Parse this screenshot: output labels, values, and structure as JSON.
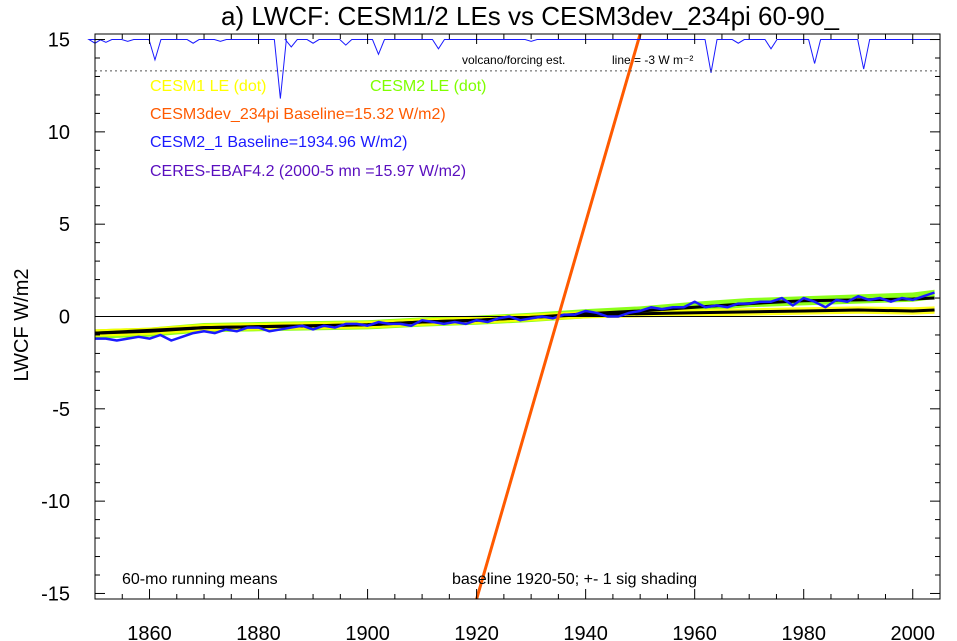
{
  "chart_data": {
    "type": "line",
    "title": "a) LWCF: CESM1/2 LEs vs CESM3dev_234pi 60-90_",
    "xlabel": "",
    "ylabel": "LWCF W/m2",
    "xlim": [
      1850,
      2005
    ],
    "ylim": [
      -15.3,
      15.3
    ],
    "x_ticks": [
      "1860",
      "1880",
      "1900",
      "1920",
      "1940",
      "1960",
      "1980",
      "2000"
    ],
    "y_ticks": [
      "15",
      "10",
      "5",
      "0",
      "-5",
      "-10",
      "-15"
    ],
    "legend": [
      {
        "text": "CESM1 LE (dot)",
        "color": "#ffff00"
      },
      {
        "text": "CESM2 LE (dot)",
        "color": "#7fff00"
      },
      {
        "text": "CESM3dev_234pi Baseline=15.32 W/m2)",
        "color": "#ff5a00"
      },
      {
        "text": "CESM2_1 Baseline=1934.96 W/m2)",
        "color": "#1a1aff"
      },
      {
        "text": "CERES-EBAF4.2 (2000-5 mn =15.97 W/m2)",
        "color": "#5a0fbf"
      }
    ],
    "volcano_label": "volcano/forcing est.",
    "volcano_line_label": "line = -3 W m⁻²",
    "note_left": "60-mo running means",
    "note_right": "baseline 1920-50; +- 1 sig shading",
    "volcano_reference_level": 13.3,
    "volcano_dips": [
      {
        "x": 1850,
        "y": 14.8
      },
      {
        "x": 1852,
        "y": 14.85
      },
      {
        "x": 1856,
        "y": 14.9
      },
      {
        "x": 1861,
        "y": 13.9
      },
      {
        "x": 1868,
        "y": 14.8
      },
      {
        "x": 1873,
        "y": 14.9
      },
      {
        "x": 1884,
        "y": 11.8
      },
      {
        "x": 1886,
        "y": 14.6
      },
      {
        "x": 1890,
        "y": 14.8
      },
      {
        "x": 1896,
        "y": 14.7
      },
      {
        "x": 1902,
        "y": 14.2
      },
      {
        "x": 1913,
        "y": 14.5
      },
      {
        "x": 1930,
        "y": 14.9
      },
      {
        "x": 1963,
        "y": 13.2
      },
      {
        "x": 1968,
        "y": 14.8
      },
      {
        "x": 1974,
        "y": 14.5
      },
      {
        "x": 1982,
        "y": 13.7
      },
      {
        "x": 1991,
        "y": 13.4
      }
    ],
    "series": [
      {
        "name": "CESM2 LE (dot)",
        "color": "#7fff00",
        "x": [
          1850,
          1860,
          1870,
          1880,
          1890,
          1900,
          1910,
          1920,
          1930,
          1940,
          1950,
          1960,
          1970,
          1980,
          1990,
          2000,
          2004
        ],
        "y": [
          -0.95,
          -0.85,
          -0.6,
          -0.55,
          -0.5,
          -0.45,
          -0.3,
          -0.2,
          -0.05,
          0.15,
          0.3,
          0.55,
          0.75,
          0.85,
          0.95,
          1.05,
          1.2
        ],
        "spread": 0.25
      },
      {
        "name": "CESM1 LE (dot)",
        "color": "#ffff00",
        "x": [
          1850,
          1860,
          1870,
          1880,
          1890,
          1900,
          1910,
          1920,
          1930,
          1940,
          1950,
          1960,
          1970,
          1980,
          1990,
          2000,
          2004
        ],
        "y": [
          -0.9,
          -0.8,
          -0.6,
          -0.55,
          -0.5,
          -0.45,
          -0.3,
          -0.2,
          -0.05,
          0.1,
          0.15,
          0.2,
          0.25,
          0.3,
          0.35,
          0.3,
          0.35
        ],
        "spread": 0.2
      },
      {
        "name": "CESM1 LE mean",
        "color": "#000000",
        "x": [
          1850,
          1860,
          1870,
          1880,
          1890,
          1900,
          1910,
          1920,
          1930,
          1940,
          1950,
          1960,
          1970,
          1980,
          1990,
          2000,
          2004
        ],
        "y": [
          -0.9,
          -0.75,
          -0.6,
          -0.55,
          -0.5,
          -0.45,
          -0.3,
          -0.2,
          -0.05,
          0.1,
          0.15,
          0.2,
          0.25,
          0.3,
          0.35,
          0.3,
          0.35
        ]
      },
      {
        "name": "CESM2 LE mean",
        "color": "#000000",
        "x": [
          1850,
          1860,
          1870,
          1880,
          1890,
          1900,
          1910,
          1920,
          1930,
          1940,
          1950,
          1960,
          1970,
          1980,
          1990,
          2000,
          2004
        ],
        "y": [
          -0.9,
          -0.8,
          -0.6,
          -0.55,
          -0.5,
          -0.45,
          -0.3,
          -0.2,
          -0.05,
          0.15,
          0.3,
          0.5,
          0.7,
          0.85,
          0.9,
          0.95,
          1.0
        ]
      },
      {
        "name": "CESM2_1 Baseline=1934.96 W/m2)",
        "color": "#1a1aff",
        "x": [
          1850,
          1852,
          1854,
          1856,
          1858,
          1860,
          1862,
          1864,
          1866,
          1868,
          1870,
          1872,
          1874,
          1876,
          1878,
          1880,
          1882,
          1884,
          1886,
          1888,
          1890,
          1892,
          1894,
          1896,
          1898,
          1900,
          1902,
          1904,
          1906,
          1908,
          1910,
          1912,
          1914,
          1916,
          1918,
          1920,
          1922,
          1924,
          1926,
          1928,
          1930,
          1932,
          1934,
          1936,
          1938,
          1940,
          1942,
          1944,
          1946,
          1948,
          1950,
          1952,
          1954,
          1956,
          1958,
          1960,
          1962,
          1964,
          1966,
          1968,
          1970,
          1972,
          1974,
          1976,
          1978,
          1980,
          1982,
          1984,
          1986,
          1988,
          1990,
          1992,
          1994,
          1996,
          1998,
          2000,
          2002,
          2004
        ],
        "y": [
          -1.2,
          -1.2,
          -1.3,
          -1.2,
          -1.1,
          -1.2,
          -1.0,
          -1.3,
          -1.1,
          -0.9,
          -0.8,
          -0.9,
          -0.7,
          -0.8,
          -0.6,
          -0.6,
          -0.8,
          -0.7,
          -0.6,
          -0.5,
          -0.7,
          -0.5,
          -0.6,
          -0.4,
          -0.4,
          -0.5,
          -0.3,
          -0.4,
          -0.4,
          -0.5,
          -0.2,
          -0.3,
          -0.4,
          -0.3,
          -0.4,
          -0.2,
          -0.3,
          -0.1,
          0.0,
          -0.2,
          -0.1,
          0.0,
          -0.1,
          0.1,
          0.1,
          0.3,
          0.2,
          0.0,
          0.0,
          0.2,
          0.3,
          0.5,
          0.4,
          0.5,
          0.5,
          0.8,
          0.5,
          0.6,
          0.5,
          0.7,
          0.7,
          0.8,
          0.8,
          1.0,
          0.6,
          1.0,
          0.8,
          0.5,
          0.9,
          0.8,
          1.1,
          0.9,
          1.0,
          0.8,
          1.0,
          0.9,
          1.1,
          1.3
        ]
      },
      {
        "name": "CESM3dev_234pi Baseline=15.32 W/m2)",
        "color": "#ff5a00",
        "x": [
          1920,
          1950
        ],
        "y": [
          -15.3,
          15.3
        ]
      }
    ]
  }
}
